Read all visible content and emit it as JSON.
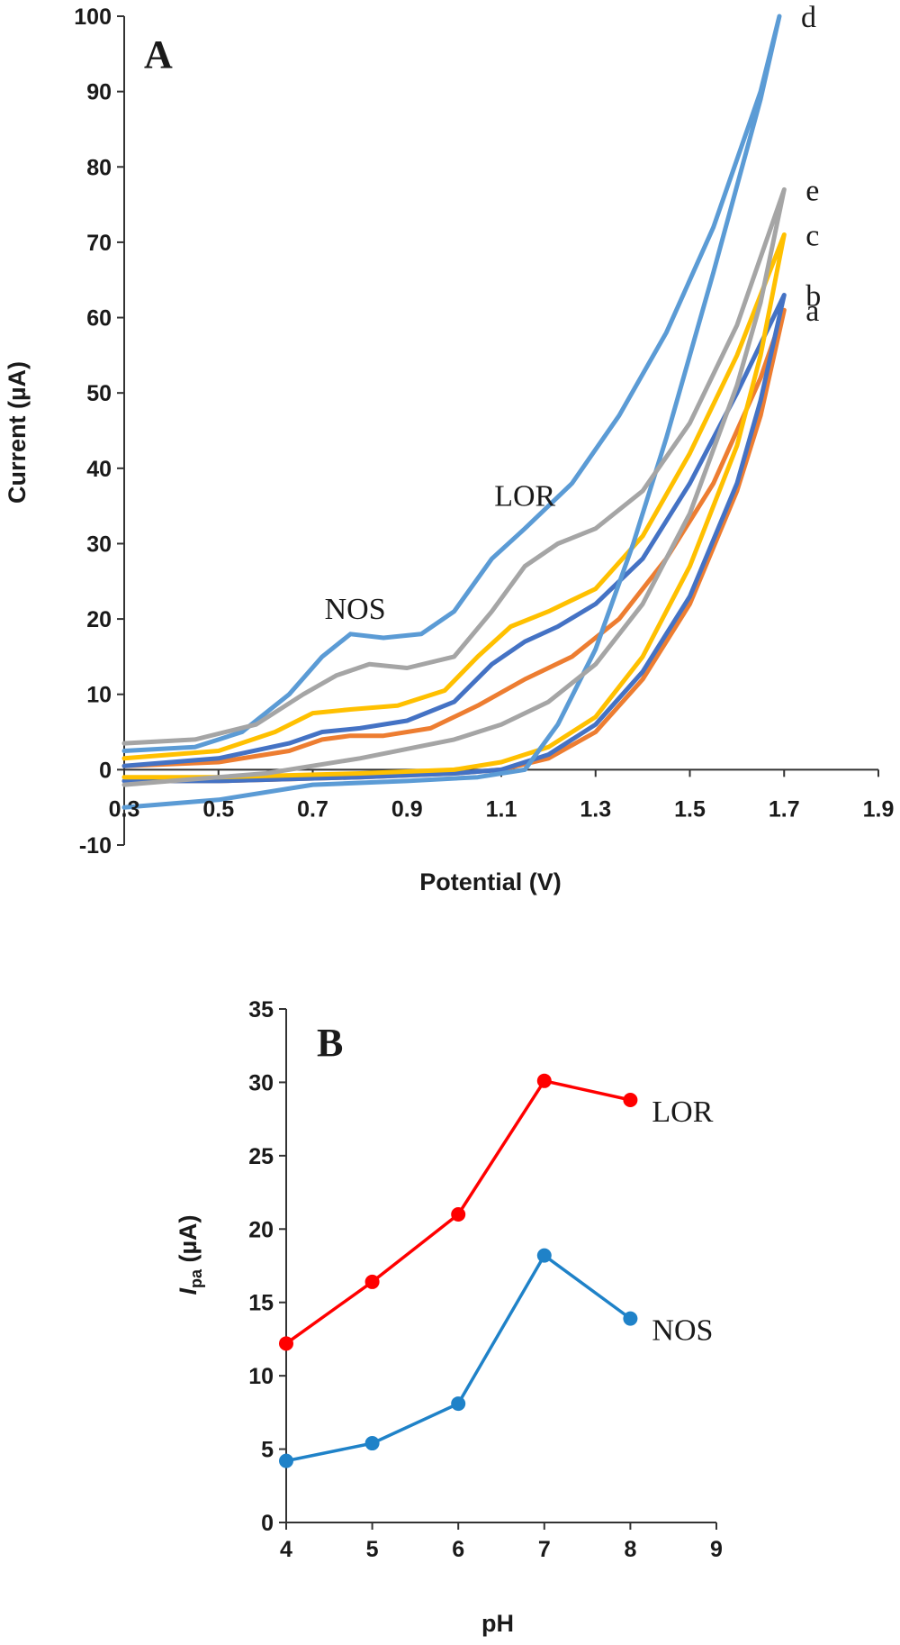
{
  "chart_data": [
    {
      "panel_label": "A",
      "type": "line",
      "xlabel": "Potential (V)",
      "ylabel": "Current (µA)",
      "xlim": [
        0.3,
        1.9
      ],
      "ylim": [
        -10,
        100
      ],
      "xticks": [
        "0.3",
        "0.5",
        "0.7",
        "0.9",
        "1.1",
        "1.3",
        "1.5",
        "1.7",
        "1.9"
      ],
      "yticks": [
        "-10",
        "0",
        "10",
        "20",
        "30",
        "40",
        "50",
        "60",
        "70",
        "80",
        "90",
        "100"
      ],
      "annotations": [
        {
          "text": "NOS",
          "x": 0.79,
          "y": 20
        },
        {
          "text": "LOR",
          "x": 1.15,
          "y": 35
        }
      ],
      "series": [
        {
          "name": "a",
          "color": "#ed7d31",
          "forward": [
            [
              0.3,
              0.5
            ],
            [
              0.5,
              1
            ],
            [
              0.65,
              2.5
            ],
            [
              0.72,
              4
            ],
            [
              0.78,
              4.5
            ],
            [
              0.85,
              4.5
            ],
            [
              0.95,
              5.5
            ],
            [
              1.05,
              8.5
            ],
            [
              1.15,
              12
            ],
            [
              1.25,
              15
            ],
            [
              1.35,
              20
            ],
            [
              1.45,
              28
            ],
            [
              1.55,
              38
            ],
            [
              1.65,
              52
            ],
            [
              1.7,
              61
            ]
          ],
          "reverse": [
            [
              1.7,
              61
            ],
            [
              1.65,
              47
            ],
            [
              1.6,
              37
            ],
            [
              1.5,
              22
            ],
            [
              1.4,
              12
            ],
            [
              1.3,
              5
            ],
            [
              1.2,
              1.5
            ],
            [
              1.1,
              0
            ],
            [
              1.0,
              -0.5
            ],
            [
              0.8,
              -1
            ],
            [
              0.5,
              -1.5
            ],
            [
              0.3,
              -1.5
            ]
          ]
        },
        {
          "name": "b",
          "color": "#4472c4",
          "forward": [
            [
              0.3,
              0.5
            ],
            [
              0.5,
              1.5
            ],
            [
              0.65,
              3.5
            ],
            [
              0.72,
              5
            ],
            [
              0.8,
              5.5
            ],
            [
              0.9,
              6.5
            ],
            [
              1.0,
              9
            ],
            [
              1.08,
              14
            ],
            [
              1.15,
              17
            ],
            [
              1.22,
              19
            ],
            [
              1.3,
              22
            ],
            [
              1.4,
              28
            ],
            [
              1.5,
              38
            ],
            [
              1.6,
              50
            ],
            [
              1.7,
              63
            ]
          ],
          "reverse": [
            [
              1.7,
              63
            ],
            [
              1.65,
              49
            ],
            [
              1.6,
              38
            ],
            [
              1.5,
              23
            ],
            [
              1.4,
              13
            ],
            [
              1.3,
              6
            ],
            [
              1.2,
              2
            ],
            [
              1.1,
              0
            ],
            [
              1.0,
              -0.5
            ],
            [
              0.8,
              -1
            ],
            [
              0.5,
              -1.5
            ],
            [
              0.3,
              -1.5
            ]
          ]
        },
        {
          "name": "c",
          "color": "#ffc000",
          "forward": [
            [
              0.3,
              1.5
            ],
            [
              0.5,
              2.5
            ],
            [
              0.62,
              5
            ],
            [
              0.7,
              7.5
            ],
            [
              0.78,
              8
            ],
            [
              0.88,
              8.5
            ],
            [
              0.98,
              10.5
            ],
            [
              1.05,
              15
            ],
            [
              1.12,
              19
            ],
            [
              1.2,
              21
            ],
            [
              1.3,
              24
            ],
            [
              1.4,
              31
            ],
            [
              1.5,
              42
            ],
            [
              1.6,
              55
            ],
            [
              1.7,
              71
            ]
          ],
          "reverse": [
            [
              1.7,
              71
            ],
            [
              1.65,
              55
            ],
            [
              1.6,
              43
            ],
            [
              1.5,
              27
            ],
            [
              1.4,
              15
            ],
            [
              1.3,
              7
            ],
            [
              1.2,
              3
            ],
            [
              1.1,
              1
            ],
            [
              1.0,
              0
            ],
            [
              0.8,
              -0.5
            ],
            [
              0.5,
              -1
            ],
            [
              0.3,
              -1
            ]
          ]
        },
        {
          "name": "d",
          "color": "#5b9bd5",
          "forward": [
            [
              0.3,
              2.5
            ],
            [
              0.45,
              3
            ],
            [
              0.55,
              5
            ],
            [
              0.65,
              10
            ],
            [
              0.72,
              15
            ],
            [
              0.78,
              18
            ],
            [
              0.85,
              17.5
            ],
            [
              0.93,
              18
            ],
            [
              1.0,
              21
            ],
            [
              1.08,
              28
            ],
            [
              1.15,
              32
            ],
            [
              1.25,
              38
            ],
            [
              1.35,
              47
            ],
            [
              1.45,
              58
            ],
            [
              1.55,
              72
            ],
            [
              1.65,
              90
            ],
            [
              1.69,
              100
            ]
          ],
          "reverse": [
            [
              1.69,
              100
            ],
            [
              1.65,
              89
            ],
            [
              1.55,
              66
            ],
            [
              1.45,
              44
            ],
            [
              1.38,
              30
            ],
            [
              1.3,
              16
            ],
            [
              1.22,
              6
            ],
            [
              1.15,
              0
            ],
            [
              1.05,
              -1
            ],
            [
              0.9,
              -1.5
            ],
            [
              0.7,
              -2
            ],
            [
              0.5,
              -4
            ],
            [
              0.3,
              -5
            ]
          ]
        },
        {
          "name": "e",
          "color": "#a5a5a5",
          "forward": [
            [
              0.3,
              3.5
            ],
            [
              0.45,
              4
            ],
            [
              0.58,
              6
            ],
            [
              0.68,
              10
            ],
            [
              0.75,
              12.5
            ],
            [
              0.82,
              14
            ],
            [
              0.9,
              13.5
            ],
            [
              1.0,
              15
            ],
            [
              1.08,
              21
            ],
            [
              1.15,
              27
            ],
            [
              1.22,
              30
            ],
            [
              1.3,
              32
            ],
            [
              1.4,
              37
            ],
            [
              1.5,
              46
            ],
            [
              1.6,
              59
            ],
            [
              1.7,
              77
            ]
          ],
          "reverse": [
            [
              1.7,
              77
            ],
            [
              1.65,
              62
            ],
            [
              1.6,
              51
            ],
            [
              1.5,
              34
            ],
            [
              1.4,
              22
            ],
            [
              1.3,
              14
            ],
            [
              1.2,
              9
            ],
            [
              1.1,
              6
            ],
            [
              1.0,
              4
            ],
            [
              0.8,
              1.5
            ],
            [
              0.6,
              -0.5
            ],
            [
              0.4,
              -1.5
            ],
            [
              0.3,
              -2
            ]
          ]
        }
      ]
    },
    {
      "panel_label": "B",
      "type": "line",
      "xlabel": "pH",
      "ylabel_main": "I",
      "ylabel_sub": "pa",
      "ylabel_unit": " (µA)",
      "ylabel_color": "#c55a11",
      "xlim": [
        4,
        9
      ],
      "ylim": [
        0,
        35
      ],
      "xticks": [
        "4",
        "5",
        "6",
        "7",
        "8",
        "9"
      ],
      "yticks": [
        "0",
        "5",
        "10",
        "15",
        "20",
        "25",
        "30",
        "35"
      ],
      "x": [
        4,
        5,
        6,
        7,
        8
      ],
      "series": [
        {
          "name": "LOR",
          "color": "#ff0000",
          "values": [
            12.2,
            16.4,
            21.0,
            30.1,
            28.8
          ]
        },
        {
          "name": "NOS",
          "color": "#1f82c8",
          "values": [
            4.2,
            5.4,
            8.1,
            18.2,
            13.9
          ]
        }
      ]
    }
  ]
}
